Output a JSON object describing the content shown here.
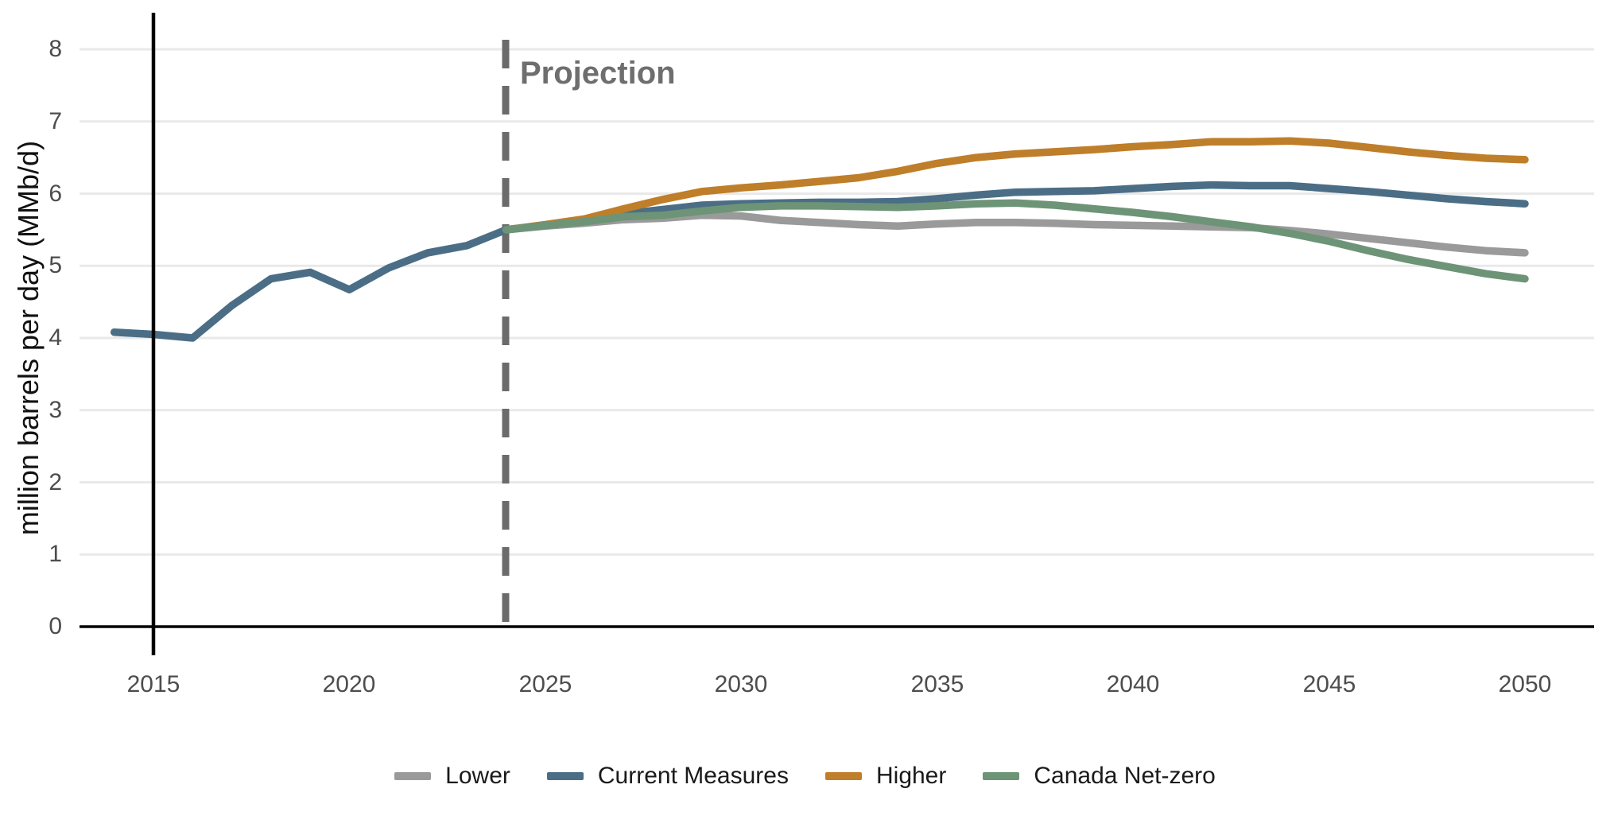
{
  "chart_data": {
    "type": "line",
    "title": "",
    "xlabel": "",
    "ylabel": "million barrels per day (MMb/d)",
    "ylim": [
      0,
      8
    ],
    "xlim": [
      2014,
      2050
    ],
    "grid": "horizontal-only",
    "legend_position": "bottom-center",
    "yticks": [
      "0",
      "1",
      "2",
      "3",
      "4",
      "5",
      "6",
      "7",
      "8"
    ],
    "xticks": [
      "2015",
      "2020",
      "2025",
      "2030",
      "2035",
      "2040",
      "2045",
      "2050"
    ],
    "annotations": [
      {
        "text": "Projection",
        "x": 2024,
        "type": "dashed-vertical-line"
      }
    ],
    "projection_start_year": 2024,
    "colors": {
      "projection_line": "#6b6b6b",
      "projection_text": "#6e6e6e",
      "gridline": "#e9e9e9",
      "axis_line": "#000000",
      "tick_text": "#4d4d4d"
    },
    "series": [
      {
        "name": "Lower",
        "color": "#9a9a9a",
        "x": [
          2024,
          2025,
          2026,
          2027,
          2028,
          2029,
          2030,
          2031,
          2032,
          2033,
          2034,
          2035,
          2036,
          2037,
          2038,
          2039,
          2040,
          2041,
          2042,
          2043,
          2044,
          2045,
          2046,
          2047,
          2048,
          2049,
          2050
        ],
        "values": [
          5.5,
          5.55,
          5.59,
          5.64,
          5.66,
          5.7,
          5.69,
          5.63,
          5.6,
          5.57,
          5.55,
          5.58,
          5.6,
          5.6,
          5.59,
          5.57,
          5.56,
          5.55,
          5.54,
          5.53,
          5.49,
          5.44,
          5.38,
          5.32,
          5.26,
          5.21,
          5.18
        ]
      },
      {
        "name": "Current Measures",
        "color": "#4b6e86",
        "x": [
          2014,
          2015,
          2016,
          2017,
          2018,
          2019,
          2020,
          2021,
          2022,
          2023,
          2024,
          2025,
          2026,
          2027,
          2028,
          2029,
          2030,
          2031,
          2032,
          2033,
          2034,
          2035,
          2036,
          2037,
          2038,
          2039,
          2040,
          2041,
          2042,
          2043,
          2044,
          2045,
          2046,
          2047,
          2048,
          2049,
          2050
        ],
        "values": [
          4.08,
          4.05,
          4.0,
          4.45,
          4.82,
          4.91,
          4.67,
          4.97,
          5.18,
          5.28,
          5.5,
          5.56,
          5.62,
          5.72,
          5.78,
          5.84,
          5.86,
          5.87,
          5.88,
          5.88,
          5.89,
          5.93,
          5.98,
          6.02,
          6.03,
          6.04,
          6.07,
          6.1,
          6.12,
          6.11,
          6.11,
          6.07,
          6.03,
          5.98,
          5.93,
          5.89,
          5.86
        ]
      },
      {
        "name": "Higher",
        "color": "#bf7e2a",
        "x": [
          2024,
          2025,
          2026,
          2027,
          2028,
          2029,
          2030,
          2031,
          2032,
          2033,
          2034,
          2035,
          2036,
          2037,
          2038,
          2039,
          2040,
          2041,
          2042,
          2043,
          2044,
          2045,
          2046,
          2047,
          2048,
          2049,
          2050
        ],
        "values": [
          5.5,
          5.57,
          5.65,
          5.79,
          5.92,
          6.03,
          6.08,
          6.12,
          6.17,
          6.22,
          6.31,
          6.42,
          6.5,
          6.55,
          6.58,
          6.61,
          6.65,
          6.68,
          6.72,
          6.72,
          6.73,
          6.7,
          6.64,
          6.58,
          6.53,
          6.49,
          6.47
        ]
      },
      {
        "name": "Canada Net-zero",
        "color": "#6d9477",
        "x": [
          2024,
          2025,
          2026,
          2027,
          2028,
          2029,
          2030,
          2031,
          2032,
          2033,
          2034,
          2035,
          2036,
          2037,
          2038,
          2039,
          2040,
          2041,
          2042,
          2043,
          2044,
          2045,
          2046,
          2047,
          2048,
          2049,
          2050
        ],
        "values": [
          5.5,
          5.56,
          5.61,
          5.68,
          5.7,
          5.76,
          5.81,
          5.83,
          5.83,
          5.82,
          5.81,
          5.83,
          5.86,
          5.87,
          5.84,
          5.79,
          5.74,
          5.68,
          5.61,
          5.54,
          5.45,
          5.34,
          5.21,
          5.09,
          4.99,
          4.89,
          4.82
        ]
      }
    ]
  }
}
